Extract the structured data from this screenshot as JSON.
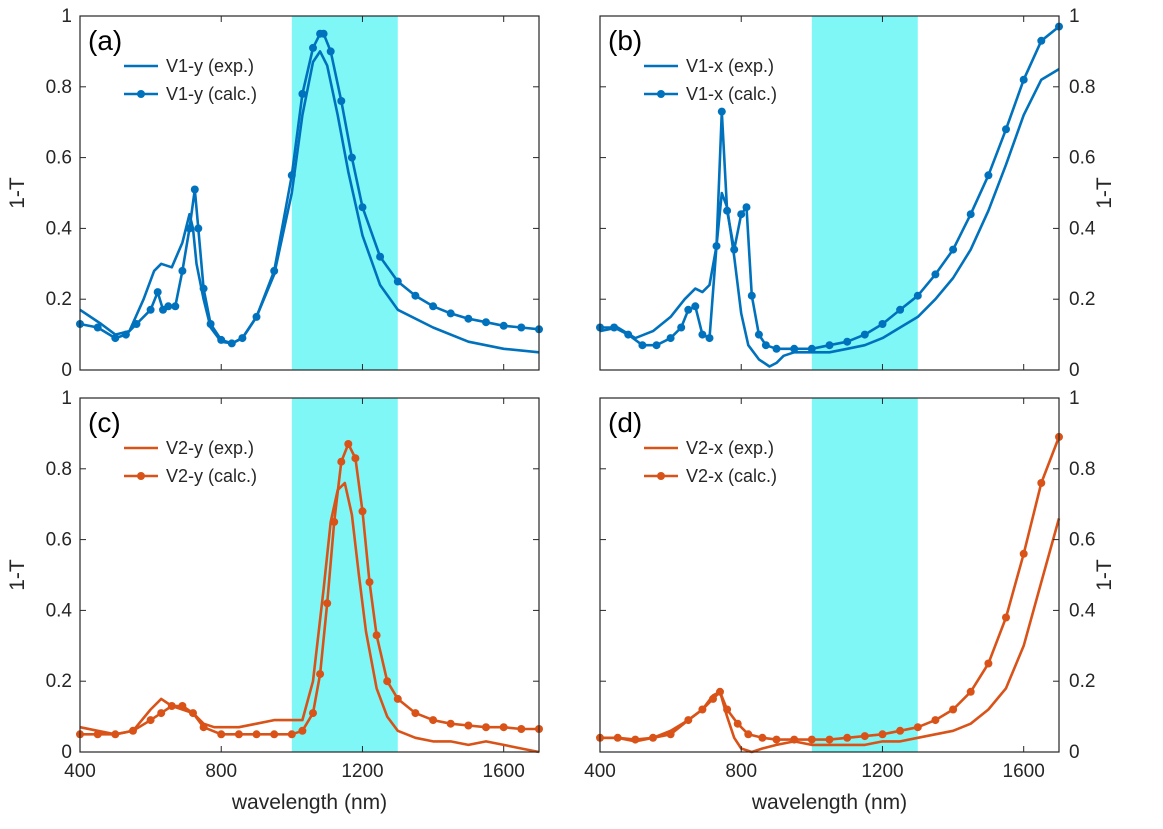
{
  "colors": {
    "blue": "#0072BD",
    "orange": "#D95319",
    "band": "#7FF7F7",
    "axis": "#262626"
  },
  "shared": {
    "xlabel": "wavelength (nm)",
    "ylabel": "1-T"
  },
  "chart_data": [
    {
      "panel": "(a)",
      "type": "line",
      "color": "blue",
      "xlim": [
        400,
        1700
      ],
      "ylim": [
        0,
        1
      ],
      "x_ticks": [
        400,
        800,
        1200,
        1600
      ],
      "y_ticks": [
        0,
        0.2,
        0.4,
        0.6,
        0.8,
        1
      ],
      "y_tick_labels": [
        "0",
        "0.2",
        "0.4",
        "0.6",
        "0.8",
        "1"
      ],
      "y_axis_side": "left",
      "show_x_ticklabels": false,
      "show_xlabel": false,
      "band": [
        1000,
        1300
      ],
      "series": [
        {
          "name": "V1-y (exp.)",
          "markers": false,
          "x": [
            400,
            460,
            500,
            540,
            580,
            610,
            630,
            660,
            690,
            710,
            720,
            730,
            750,
            770,
            800,
            830,
            860,
            900,
            950,
            1000,
            1030,
            1060,
            1080,
            1100,
            1130,
            1160,
            1200,
            1250,
            1300,
            1400,
            1500,
            1600,
            1700
          ],
          "y": [
            0.17,
            0.13,
            0.1,
            0.11,
            0.2,
            0.28,
            0.3,
            0.29,
            0.36,
            0.44,
            0.4,
            0.3,
            0.2,
            0.12,
            0.08,
            0.075,
            0.09,
            0.15,
            0.27,
            0.5,
            0.72,
            0.87,
            0.9,
            0.86,
            0.72,
            0.56,
            0.38,
            0.24,
            0.17,
            0.12,
            0.08,
            0.06,
            0.05
          ]
        },
        {
          "name": "V1-y (calc.)",
          "markers": true,
          "x": [
            400,
            450,
            500,
            530,
            560,
            600,
            620,
            635,
            650,
            670,
            690,
            710,
            725,
            735,
            750,
            770,
            800,
            830,
            860,
            900,
            950,
            1000,
            1030,
            1060,
            1080,
            1090,
            1110,
            1140,
            1170,
            1200,
            1250,
            1300,
            1350,
            1400,
            1450,
            1500,
            1550,
            1600,
            1650,
            1700
          ],
          "y": [
            0.13,
            0.12,
            0.09,
            0.1,
            0.13,
            0.17,
            0.22,
            0.17,
            0.18,
            0.18,
            0.28,
            0.4,
            0.51,
            0.4,
            0.23,
            0.13,
            0.085,
            0.075,
            0.09,
            0.15,
            0.28,
            0.55,
            0.78,
            0.91,
            0.95,
            0.95,
            0.9,
            0.76,
            0.6,
            0.46,
            0.32,
            0.25,
            0.21,
            0.18,
            0.16,
            0.145,
            0.135,
            0.125,
            0.12,
            0.115
          ]
        }
      ]
    },
    {
      "panel": "(b)",
      "type": "line",
      "color": "blue",
      "xlim": [
        400,
        1700
      ],
      "ylim": [
        0,
        1
      ],
      "x_ticks": [
        400,
        800,
        1200,
        1600
      ],
      "y_ticks": [
        0,
        0.2,
        0.4,
        0.6,
        0.8,
        1
      ],
      "y_tick_labels": [
        "0",
        "0.2",
        "0.4",
        "0.6",
        "0.8",
        "1"
      ],
      "y_axis_side": "right",
      "show_x_ticklabels": false,
      "show_xlabel": false,
      "band": [
        1000,
        1300
      ],
      "series": [
        {
          "name": "V1-x (exp.)",
          "markers": false,
          "x": [
            400,
            450,
            500,
            550,
            600,
            640,
            670,
            690,
            710,
            730,
            745,
            760,
            780,
            800,
            820,
            850,
            880,
            900,
            920,
            950,
            1000,
            1050,
            1100,
            1150,
            1200,
            1250,
            1300,
            1350,
            1400,
            1450,
            1500,
            1550,
            1600,
            1650,
            1700
          ],
          "y": [
            0.11,
            0.12,
            0.09,
            0.11,
            0.15,
            0.2,
            0.23,
            0.22,
            0.24,
            0.35,
            0.5,
            0.46,
            0.32,
            0.16,
            0.07,
            0.03,
            0.01,
            0.02,
            0.04,
            0.05,
            0.05,
            0.05,
            0.06,
            0.07,
            0.09,
            0.12,
            0.15,
            0.2,
            0.26,
            0.34,
            0.45,
            0.58,
            0.72,
            0.82,
            0.85
          ]
        },
        {
          "name": "V1-x (calc.)",
          "markers": true,
          "x": [
            400,
            440,
            480,
            520,
            560,
            600,
            630,
            650,
            670,
            690,
            710,
            730,
            745,
            760,
            780,
            800,
            815,
            830,
            850,
            870,
            900,
            950,
            1000,
            1050,
            1100,
            1150,
            1200,
            1250,
            1300,
            1350,
            1400,
            1450,
            1500,
            1550,
            1600,
            1650,
            1700
          ],
          "y": [
            0.12,
            0.12,
            0.1,
            0.07,
            0.07,
            0.09,
            0.12,
            0.17,
            0.18,
            0.1,
            0.09,
            0.35,
            0.73,
            0.45,
            0.34,
            0.44,
            0.46,
            0.21,
            0.1,
            0.07,
            0.06,
            0.06,
            0.06,
            0.07,
            0.08,
            0.1,
            0.13,
            0.17,
            0.21,
            0.27,
            0.34,
            0.44,
            0.55,
            0.68,
            0.82,
            0.93,
            0.97
          ]
        }
      ]
    },
    {
      "panel": "(c)",
      "type": "line",
      "color": "orange",
      "xlim": [
        400,
        1700
      ],
      "ylim": [
        0,
        1
      ],
      "x_ticks": [
        400,
        800,
        1200,
        1600
      ],
      "y_ticks": [
        0,
        0.2,
        0.4,
        0.6,
        0.8,
        1
      ],
      "x_tick_labels": [
        "400",
        "800",
        "1200",
        "1600"
      ],
      "y_tick_labels": [
        "0",
        "0.2",
        "0.4",
        "0.6",
        "0.8",
        "1"
      ],
      "y_axis_side": "left",
      "show_x_ticklabels": true,
      "show_xlabel": true,
      "band": [
        1000,
        1300
      ],
      "series": [
        {
          "name": "V2-y (exp.)",
          "markers": false,
          "x": [
            400,
            450,
            500,
            550,
            600,
            630,
            660,
            690,
            720,
            750,
            780,
            800,
            850,
            900,
            950,
            1000,
            1030,
            1060,
            1090,
            1110,
            1130,
            1150,
            1170,
            1190,
            1210,
            1240,
            1270,
            1300,
            1350,
            1400,
            1450,
            1500,
            1550,
            1600,
            1650,
            1700
          ],
          "y": [
            0.07,
            0.06,
            0.05,
            0.06,
            0.12,
            0.15,
            0.13,
            0.12,
            0.11,
            0.08,
            0.07,
            0.07,
            0.07,
            0.08,
            0.09,
            0.09,
            0.09,
            0.2,
            0.46,
            0.65,
            0.74,
            0.76,
            0.67,
            0.5,
            0.34,
            0.18,
            0.1,
            0.06,
            0.04,
            0.03,
            0.03,
            0.02,
            0.03,
            0.02,
            0.01,
            0.0
          ]
        },
        {
          "name": "V2-y (calc.)",
          "markers": true,
          "x": [
            400,
            450,
            500,
            550,
            600,
            630,
            660,
            690,
            720,
            750,
            800,
            850,
            900,
            950,
            1000,
            1030,
            1060,
            1080,
            1100,
            1120,
            1140,
            1160,
            1180,
            1200,
            1220,
            1240,
            1270,
            1300,
            1350,
            1400,
            1450,
            1500,
            1550,
            1600,
            1650,
            1700
          ],
          "y": [
            0.05,
            0.05,
            0.05,
            0.06,
            0.09,
            0.11,
            0.13,
            0.13,
            0.11,
            0.07,
            0.05,
            0.05,
            0.05,
            0.05,
            0.05,
            0.06,
            0.11,
            0.22,
            0.42,
            0.65,
            0.82,
            0.87,
            0.83,
            0.68,
            0.48,
            0.33,
            0.2,
            0.15,
            0.11,
            0.09,
            0.08,
            0.075,
            0.07,
            0.07,
            0.065,
            0.065
          ]
        }
      ]
    },
    {
      "panel": "(d)",
      "type": "line",
      "color": "orange",
      "xlim": [
        400,
        1700
      ],
      "ylim": [
        0,
        1
      ],
      "x_ticks": [
        400,
        800,
        1200,
        1600
      ],
      "y_ticks": [
        0,
        0.2,
        0.4,
        0.6,
        0.8,
        1
      ],
      "x_tick_labels": [
        "400",
        "800",
        "1200",
        "1600"
      ],
      "y_tick_labels": [
        "0",
        "0.2",
        "0.4",
        "0.6",
        "0.8",
        "1"
      ],
      "y_axis_side": "right",
      "show_x_ticklabels": true,
      "show_xlabel": true,
      "band": [
        1000,
        1300
      ],
      "series": [
        {
          "name": "V2-x (exp.)",
          "markers": false,
          "x": [
            400,
            450,
            500,
            550,
            600,
            650,
            690,
            720,
            740,
            760,
            780,
            800,
            830,
            860,
            900,
            950,
            1000,
            1050,
            1100,
            1150,
            1200,
            1250,
            1300,
            1350,
            1400,
            1450,
            1500,
            1550,
            1600,
            1650,
            1700
          ],
          "y": [
            0.04,
            0.04,
            0.03,
            0.04,
            0.06,
            0.09,
            0.12,
            0.16,
            0.17,
            0.1,
            0.04,
            0.01,
            0.0,
            0.01,
            0.02,
            0.03,
            0.02,
            0.02,
            0.02,
            0.02,
            0.03,
            0.03,
            0.04,
            0.05,
            0.06,
            0.08,
            0.12,
            0.18,
            0.3,
            0.48,
            0.66
          ]
        },
        {
          "name": "V2-x (calc.)",
          "markers": true,
          "x": [
            400,
            450,
            500,
            550,
            600,
            650,
            690,
            720,
            740,
            760,
            790,
            820,
            860,
            900,
            950,
            1000,
            1050,
            1100,
            1150,
            1200,
            1250,
            1300,
            1350,
            1400,
            1450,
            1500,
            1550,
            1600,
            1650,
            1700
          ],
          "y": [
            0.04,
            0.04,
            0.035,
            0.04,
            0.05,
            0.09,
            0.12,
            0.15,
            0.17,
            0.12,
            0.08,
            0.05,
            0.04,
            0.035,
            0.035,
            0.035,
            0.035,
            0.04,
            0.045,
            0.05,
            0.06,
            0.07,
            0.09,
            0.12,
            0.17,
            0.25,
            0.38,
            0.56,
            0.76,
            0.89
          ]
        }
      ]
    }
  ]
}
